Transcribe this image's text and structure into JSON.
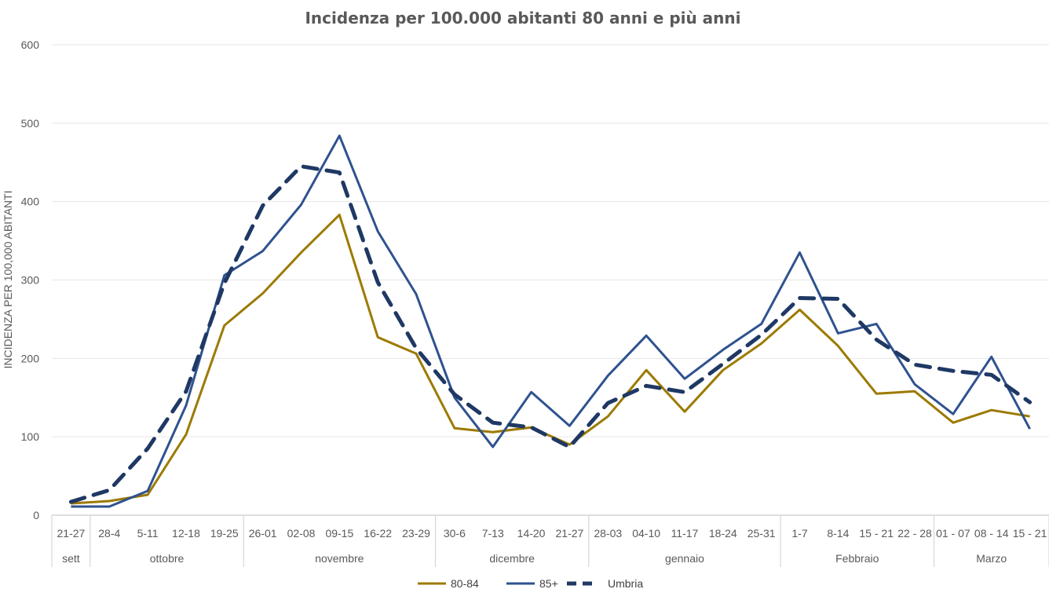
{
  "chart_data": {
    "type": "line",
    "title": "Incidenza per 100.000 abitanti 80 anni e più anni",
    "ylabel": "INCIDENZA PER 100,000 ABITANTI",
    "xlabel": "",
    "ylim": [
      0,
      600
    ],
    "yticks": [
      0,
      100,
      200,
      300,
      400,
      500,
      600
    ],
    "grid": true,
    "legend_position": "bottom",
    "categories": [
      "21-27",
      "28-4",
      "5-11",
      "12-18",
      "19-25",
      "26-01",
      "02-08",
      "09-15",
      "16-22",
      "23-29",
      "30-6",
      "7-13",
      "14-20",
      "21-27",
      "28-03",
      "04-10",
      "11-17",
      "18-24",
      "25-31",
      "1-7",
      "8-14",
      "15 - 21",
      "22 - 28",
      "01 - 07",
      "08 - 14",
      "15 - 21"
    ],
    "groups": [
      {
        "label": "sett",
        "start": 0,
        "end": 0
      },
      {
        "label": "ottobre",
        "start": 1,
        "end": 4
      },
      {
        "label": "novembre",
        "start": 5,
        "end": 9
      },
      {
        "label": "dicembre",
        "start": 10,
        "end": 13
      },
      {
        "label": "gennaio",
        "start": 14,
        "end": 18
      },
      {
        "label": "Febbraio",
        "start": 19,
        "end": 22
      },
      {
        "label": "Marzo",
        "start": 23,
        "end": 25
      }
    ],
    "series": [
      {
        "name": "80-84",
        "color": "#9c7a00",
        "style": "solid",
        "values": [
          15,
          18,
          26,
          103,
          242,
          283,
          335,
          383,
          227,
          206,
          111,
          106,
          112,
          90,
          126,
          185,
          132,
          185,
          219,
          262,
          216,
          155,
          158,
          118,
          134,
          126
        ]
      },
      {
        "name": "85+",
        "color": "#2f528f",
        "style": "solid",
        "values": [
          11,
          11,
          31,
          140,
          306,
          337,
          396,
          484,
          362,
          282,
          150,
          87,
          157,
          114,
          178,
          229,
          174,
          211,
          244,
          335,
          232,
          244,
          167,
          129,
          202,
          110
        ]
      },
      {
        "name": "Umbria",
        "color": "#1f3864",
        "style": "dashed",
        "values": [
          17,
          32,
          85,
          158,
          296,
          395,
          445,
          437,
          297,
          213,
          154,
          118,
          112,
          87,
          143,
          165,
          157,
          193,
          230,
          277,
          276,
          224,
          192,
          184,
          179,
          144
        ]
      }
    ]
  }
}
